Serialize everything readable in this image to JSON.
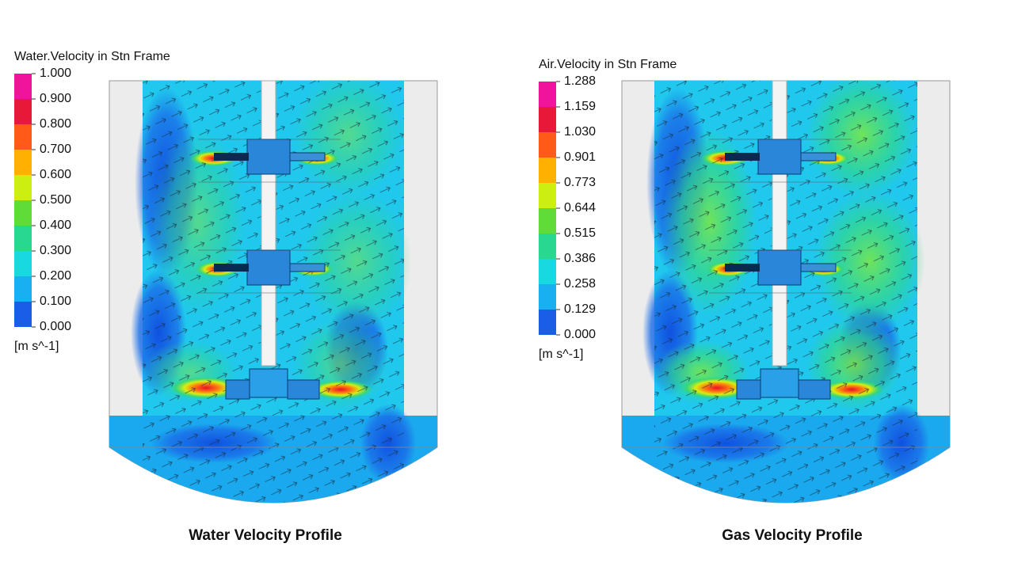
{
  "panels": [
    {
      "legend_title": "Water.Velocity in Stn Frame",
      "ticks": [
        "1.000",
        "0.900",
        "0.800",
        "0.700",
        "0.600",
        "0.500",
        "0.400",
        "0.300",
        "0.200",
        "0.100",
        "0.000"
      ],
      "unit": "[m s^-1]",
      "caption": "Water Velocity Profile"
    },
    {
      "legend_title": "Air.Velocity in Stn Frame",
      "ticks": [
        "1.288",
        "1.159",
        "1.030",
        "0.901",
        "0.773",
        "0.644",
        "0.515",
        "0.386",
        "0.258",
        "0.129",
        "0.000"
      ],
      "unit": "[m s^-1]",
      "caption": "Gas Velocity Profile"
    }
  ]
}
